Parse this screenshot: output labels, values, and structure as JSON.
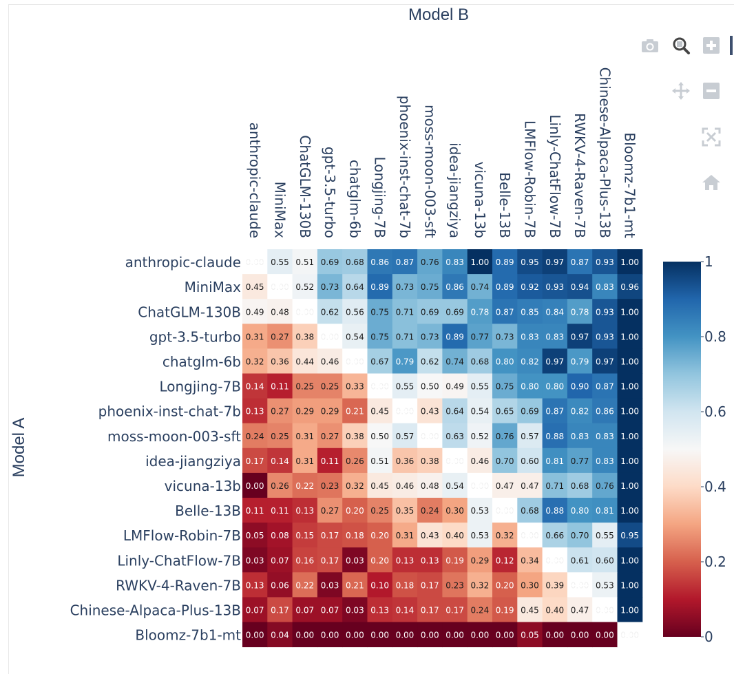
{
  "modebar": {
    "buttons": [
      {
        "name": "camera-icon",
        "title": "Download plot as a png"
      },
      {
        "name": "zoom-icon",
        "title": "Zoom"
      },
      {
        "name": "zoom-in-icon",
        "title": "Zoom in"
      },
      {
        "name": "pan-icon",
        "title": "Pan"
      },
      {
        "name": "zoom-out-icon",
        "title": "Zoom out"
      },
      {
        "name": "autoscale-icon",
        "title": "Autoscale"
      },
      {
        "name": "reset-axes-icon",
        "title": "Reset axes"
      }
    ]
  },
  "chart_data": {
    "type": "heatmap",
    "xlabel": "Model B",
    "ylabel": "Model A",
    "x": [
      "anthropic-claude",
      "MiniMax",
      "ChatGLM-130B",
      "gpt-3.5-turbo",
      "chatglm-6b",
      "Longjing-7B",
      "phoenix-inst-chat-7b",
      "moss-moon-003-sft",
      "idea-jiangziya",
      "vicuna-13b",
      "Belle-13B",
      "LMFlow-Robin-7B",
      "Linly-ChatFlow-7B",
      "RWKV-4-Raven-7B",
      "Chinese-Alpaca-Plus-13B",
      "Bloomz-7b1-mt"
    ],
    "y": [
      "anthropic-claude",
      "MiniMax",
      "ChatGLM-130B",
      "gpt-3.5-turbo",
      "chatglm-6b",
      "Longjing-7B",
      "phoenix-inst-chat-7b",
      "moss-moon-003-sft",
      "idea-jiangziya",
      "vicuna-13b",
      "Belle-13B",
      "LMFlow-Robin-7B",
      "Linly-ChatFlow-7B",
      "RWKV-4-Raven-7B",
      "Chinese-Alpaca-Plus-13B",
      "Bloomz-7b1-mt"
    ],
    "z": [
      [
        null,
        0.55,
        0.51,
        0.69,
        0.68,
        0.86,
        0.87,
        0.76,
        0.83,
        1.0,
        0.89,
        0.95,
        0.97,
        0.87,
        0.93,
        1.0
      ],
      [
        0.45,
        null,
        0.52,
        0.73,
        0.64,
        0.89,
        0.73,
        0.75,
        0.86,
        0.74,
        0.89,
        0.92,
        0.93,
        0.94,
        0.83,
        0.96
      ],
      [
        0.49,
        0.48,
        null,
        0.62,
        0.56,
        0.75,
        0.71,
        0.69,
        0.69,
        0.78,
        0.87,
        0.85,
        0.84,
        0.78,
        0.93,
        1.0
      ],
      [
        0.31,
        0.27,
        0.38,
        null,
        0.54,
        0.75,
        0.71,
        0.73,
        0.89,
        0.77,
        0.73,
        0.83,
        0.83,
        0.97,
        0.93,
        1.0
      ],
      [
        0.32,
        0.36,
        0.44,
        0.46,
        null,
        0.67,
        0.79,
        0.62,
        0.74,
        0.68,
        0.8,
        0.82,
        0.97,
        0.79,
        0.97,
        1.0
      ],
      [
        0.14,
        0.11,
        0.25,
        0.25,
        0.33,
        null,
        0.55,
        0.5,
        0.49,
        0.55,
        0.75,
        0.8,
        0.8,
        0.9,
        0.87,
        1.0
      ],
      [
        0.13,
        0.27,
        0.29,
        0.29,
        0.21,
        0.45,
        null,
        0.43,
        0.64,
        0.54,
        0.65,
        0.69,
        0.87,
        0.82,
        0.86,
        1.0
      ],
      [
        0.24,
        0.25,
        0.31,
        0.27,
        0.38,
        0.5,
        0.57,
        null,
        0.63,
        0.52,
        0.76,
        0.57,
        0.88,
        0.83,
        0.83,
        1.0
      ],
      [
        0.17,
        0.14,
        0.31,
        0.11,
        0.26,
        0.51,
        0.36,
        0.38,
        null,
        0.46,
        0.7,
        0.6,
        0.81,
        0.77,
        0.83,
        1.0
      ],
      [
        0.0,
        0.26,
        0.22,
        0.23,
        0.32,
        0.45,
        0.46,
        0.48,
        0.54,
        null,
        0.47,
        0.47,
        0.71,
        0.68,
        0.76,
        1.0
      ],
      [
        0.11,
        0.11,
        0.13,
        0.27,
        0.2,
        0.25,
        0.35,
        0.24,
        0.3,
        0.53,
        null,
        0.68,
        0.88,
        0.8,
        0.81,
        1.0
      ],
      [
        0.05,
        0.08,
        0.15,
        0.17,
        0.18,
        0.2,
        0.31,
        0.43,
        0.4,
        0.53,
        0.32,
        null,
        0.66,
        0.7,
        0.55,
        0.95
      ],
      [
        0.03,
        0.07,
        0.16,
        0.17,
        0.03,
        0.2,
        0.13,
        0.13,
        0.19,
        0.29,
        0.12,
        0.34,
        null,
        0.61,
        0.6,
        1.0
      ],
      [
        0.13,
        0.06,
        0.22,
        0.03,
        0.21,
        0.1,
        0.18,
        0.17,
        0.23,
        0.32,
        0.2,
        0.3,
        0.39,
        null,
        0.53,
        1.0
      ],
      [
        0.07,
        0.17,
        0.07,
        0.07,
        0.03,
        0.13,
        0.14,
        0.17,
        0.17,
        0.24,
        0.19,
        0.45,
        0.4,
        0.47,
        null,
        1.0
      ],
      [
        0.0,
        0.04,
        0.0,
        0.0,
        0.0,
        0.0,
        0.0,
        0.0,
        0.0,
        0.0,
        0.0,
        0.05,
        0.0,
        0.0,
        0.0,
        null
      ]
    ],
    "missing_label": "0.00",
    "zmin": 0,
    "zmax": 1,
    "colorscale": "RdBu",
    "colorbar": {
      "ticks": [
        0,
        0.2,
        0.4,
        0.6,
        0.8,
        1
      ],
      "tick_labels": [
        "0",
        "0.2",
        "0.4",
        "0.6",
        "0.8",
        "1"
      ]
    },
    "colors": {
      "text_dark": "#2a3f5f",
      "cell_text_light": "#ffffff",
      "cell_text_dark": "#1a1a1a",
      "missing_fill": "#ffffff"
    }
  }
}
